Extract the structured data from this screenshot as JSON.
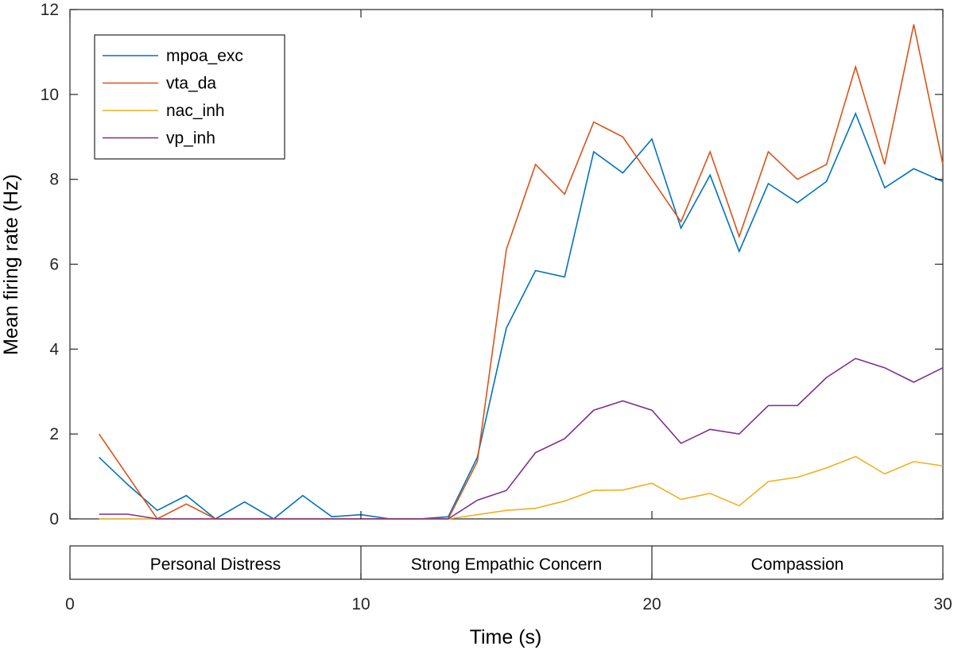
{
  "chart_data": {
    "type": "line",
    "title": "",
    "xlabel": "Time (s)",
    "ylabel": "Mean firing rate (Hz)",
    "xlim": [
      0,
      30
    ],
    "ylim": [
      0,
      12
    ],
    "xticks": [
      0,
      10,
      20,
      30
    ],
    "yticks": [
      0,
      2,
      4,
      6,
      8,
      10,
      12
    ],
    "x": [
      1,
      2,
      3,
      4,
      5,
      6,
      7,
      8,
      9,
      10,
      11,
      12,
      13,
      14,
      15,
      16,
      17,
      18,
      19,
      20,
      21,
      22,
      23,
      24,
      25,
      26,
      27,
      28,
      29,
      30
    ],
    "series": [
      {
        "name": "mpoa_exc",
        "color": "#0072BD",
        "values": [
          1.45,
          0.8,
          0.2,
          0.55,
          0,
          0.4,
          0,
          0.55,
          0.05,
          0.1,
          0,
          0,
          0.05,
          1.45,
          4.5,
          5.85,
          5.7,
          8.65,
          8.15,
          8.95,
          6.85,
          8.1,
          6.3,
          7.9,
          7.45,
          7.95,
          9.55,
          7.8,
          8.25,
          7.95
        ]
      },
      {
        "name": "vta_da",
        "color": "#D95319",
        "values": [
          2.0,
          1.0,
          0,
          0.35,
          0,
          0,
          0,
          0,
          0,
          0,
          0,
          0,
          0,
          1.35,
          6.35,
          8.35,
          7.65,
          9.35,
          9.0,
          8.0,
          7.0,
          8.65,
          6.65,
          8.65,
          8.0,
          8.35,
          10.65,
          8.35,
          11.65,
          8.35
        ]
      },
      {
        "name": "nac_inh",
        "color": "#EDB120",
        "values": [
          0,
          0,
          0,
          0,
          0,
          0,
          0,
          0,
          0,
          0,
          0,
          0,
          0,
          0.1,
          0.2,
          0.25,
          0.42,
          0.67,
          0.68,
          0.84,
          0.46,
          0.6,
          0.31,
          0.88,
          0.98,
          1.2,
          1.47,
          1.06,
          1.35,
          1.25
        ]
      },
      {
        "name": "vp_inh",
        "color": "#7E2F8E",
        "values": [
          0.11,
          0.11,
          0,
          0,
          0,
          0,
          0,
          0,
          0,
          0,
          0,
          0,
          0,
          0.44,
          0.67,
          1.56,
          1.89,
          2.56,
          2.78,
          2.56,
          1.78,
          2.11,
          2.0,
          2.67,
          2.67,
          3.33,
          3.78,
          3.56,
          3.22,
          3.56
        ]
      }
    ],
    "legend": {
      "position": "top-left",
      "entries": [
        "mpoa_exc",
        "vta_da",
        "nac_inh",
        "vp_inh"
      ]
    },
    "phases": [
      {
        "label": "Personal Distress",
        "start": 0,
        "end": 10
      },
      {
        "label": "Strong Empathic Concern",
        "start": 10,
        "end": 20
      },
      {
        "label": "Compassion",
        "start": 20,
        "end": 30
      }
    ]
  }
}
